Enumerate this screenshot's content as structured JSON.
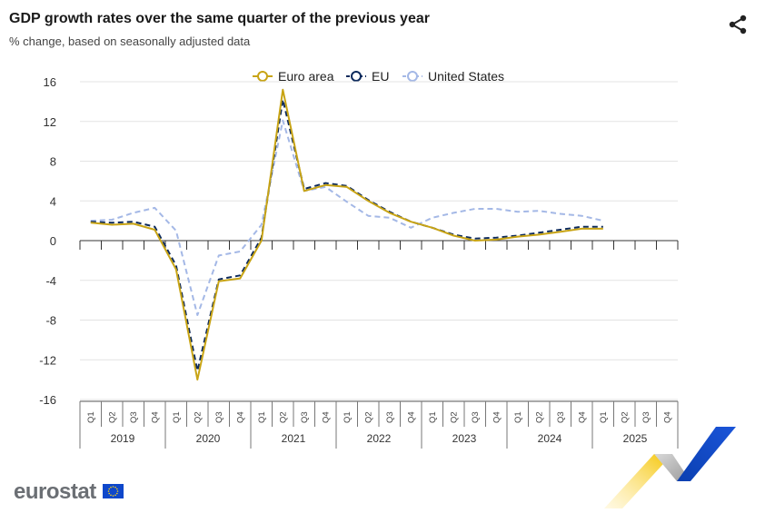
{
  "header": {
    "title": "GDP growth rates over the same quarter of the previous year",
    "subtitle": "% change, based on seasonally adjusted data",
    "share_icon": "share-icon"
  },
  "logo": {
    "text": "eurostat",
    "flag_icon": "eu-flag-icon"
  },
  "colors": {
    "euro_area": "#c8a415",
    "eu": "#0d2a5c",
    "us": "#a4b8e6",
    "grid": "#e3e3e3"
  },
  "chart_data": {
    "type": "line",
    "title": "GDP growth rates over the same quarter of the previous year",
    "subtitle": "% change, based on seasonally adjusted data",
    "ylim": [
      -16,
      16
    ],
    "y_ticks": [
      16,
      12,
      8,
      4,
      0,
      -4,
      -8,
      -12,
      -16
    ],
    "quarters": [
      "Q1",
      "Q2",
      "Q3",
      "Q4"
    ],
    "years": [
      "2019",
      "2020",
      "2021",
      "2022",
      "2023",
      "2024",
      "2025"
    ],
    "legend": {
      "position": "top-center"
    },
    "grid": true,
    "series": [
      {
        "name": "Euro area",
        "style": "solid",
        "color": "#c8a415",
        "values": [
          1.8,
          1.6,
          1.7,
          1.1,
          -2.9,
          -14.0,
          -4.1,
          -3.8,
          0.0,
          15.2,
          5.0,
          5.6,
          5.4,
          4.0,
          2.8,
          1.9,
          1.3,
          0.5,
          0.0,
          0.1,
          0.4,
          0.6,
          0.9,
          1.2,
          1.2,
          null,
          null,
          null
        ]
      },
      {
        "name": "EU",
        "style": "dashed",
        "color": "#0d2a5c",
        "values": [
          1.9,
          1.8,
          1.9,
          1.4,
          -2.5,
          -13.1,
          -3.9,
          -3.5,
          0.3,
          14.2,
          5.2,
          5.8,
          5.5,
          4.1,
          2.9,
          1.9,
          1.3,
          0.6,
          0.2,
          0.3,
          0.5,
          0.8,
          1.1,
          1.4,
          1.4,
          null,
          null,
          null
        ]
      },
      {
        "name": "United States",
        "style": "dashed",
        "color": "#a4b8e6",
        "values": [
          2.0,
          2.1,
          2.8,
          3.3,
          1.0,
          -7.5,
          -1.5,
          -1.1,
          1.6,
          12.1,
          5.0,
          5.4,
          3.9,
          2.5,
          2.3,
          1.3,
          2.3,
          2.8,
          3.2,
          3.2,
          2.9,
          3.0,
          2.7,
          2.5,
          2.0,
          null,
          null,
          null
        ]
      }
    ]
  }
}
